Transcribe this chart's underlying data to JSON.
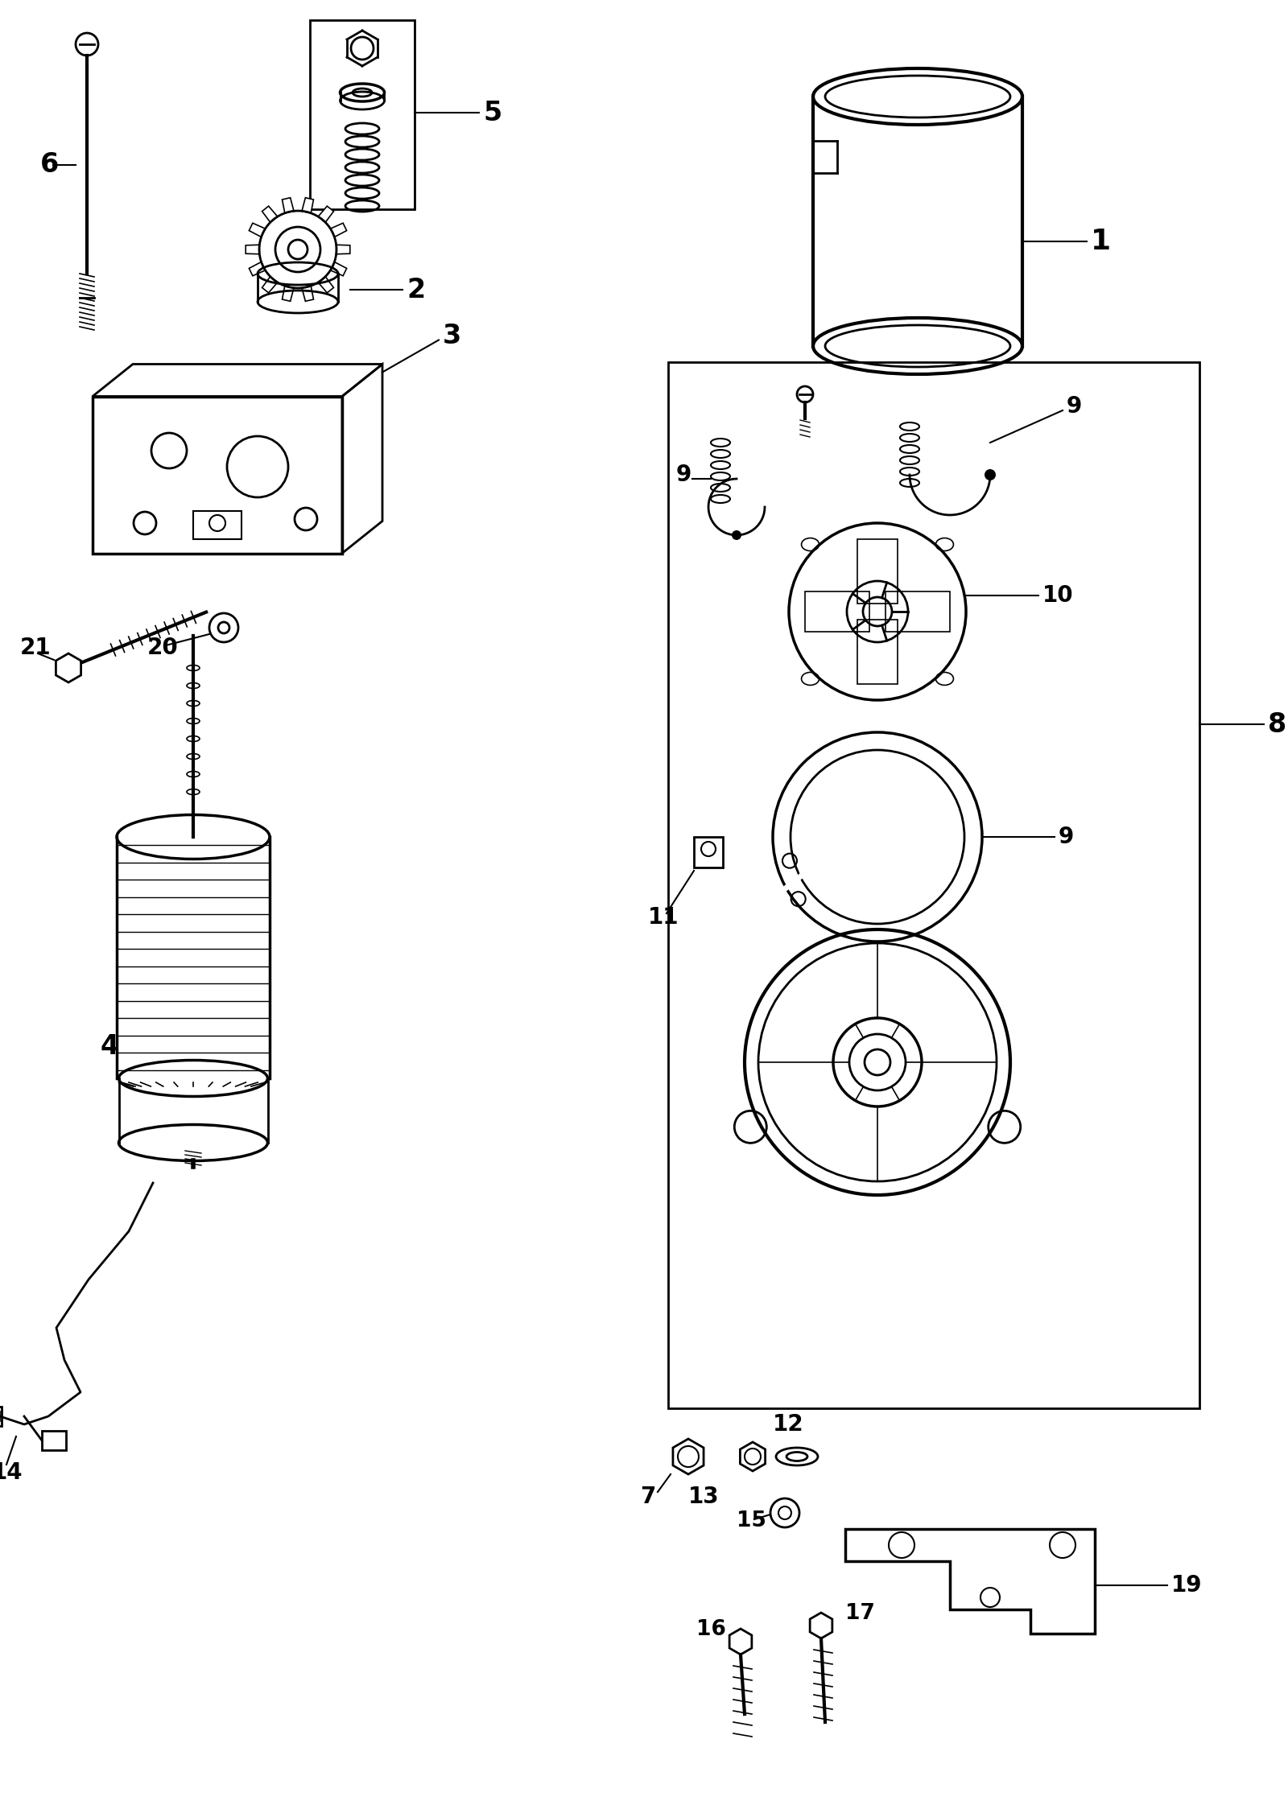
{
  "bg_color": "#ffffff",
  "line_color": "#000000",
  "lw": 2.0
}
